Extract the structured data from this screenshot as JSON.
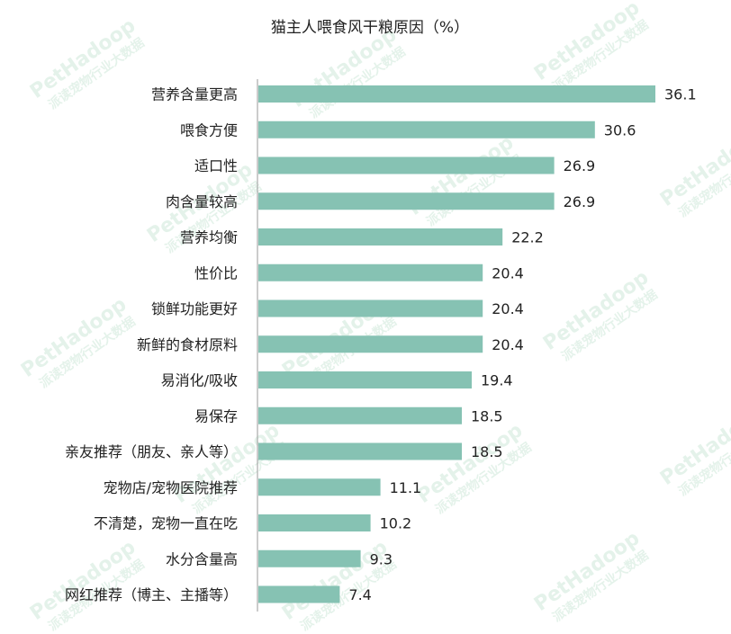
{
  "watermark": {
    "brand": "PetHadoop",
    "sub": "派读宠物行业大数据"
  },
  "chart_data": {
    "type": "bar",
    "orientation": "horizontal",
    "title": "猫主人喂食风干粮原因（%）",
    "categories": [
      "营养含量更高",
      "喂食方便",
      "适口性",
      "肉含量较高",
      "营养均衡",
      "性价比",
      "锁鲜功能更好",
      "新鲜的食材原料",
      "易消化/吸收",
      "易保存",
      "亲友推荐（朋友、亲人等）",
      "宠物店/宠物医院推荐",
      "不清楚，宠物一直在吃",
      "水分含量高",
      "网红推荐（博主、主播等）"
    ],
    "values": [
      36.1,
      30.6,
      26.9,
      26.9,
      22.2,
      20.4,
      20.4,
      20.4,
      19.4,
      18.5,
      18.5,
      11.1,
      10.2,
      9.3,
      7.4
    ],
    "value_labels": [
      "36.1",
      "30.6",
      "26.9",
      "26.9",
      "22.2",
      "20.4",
      "20.4",
      "20.4",
      "19.4",
      "18.5",
      "18.5",
      "11.1",
      "10.2",
      "9.3",
      "7.4"
    ],
    "xlim": [
      0,
      36.1
    ],
    "bar_color": "#86c2b3",
    "axis_color": "#9a9a9a",
    "grid": false,
    "legend": "none"
  }
}
